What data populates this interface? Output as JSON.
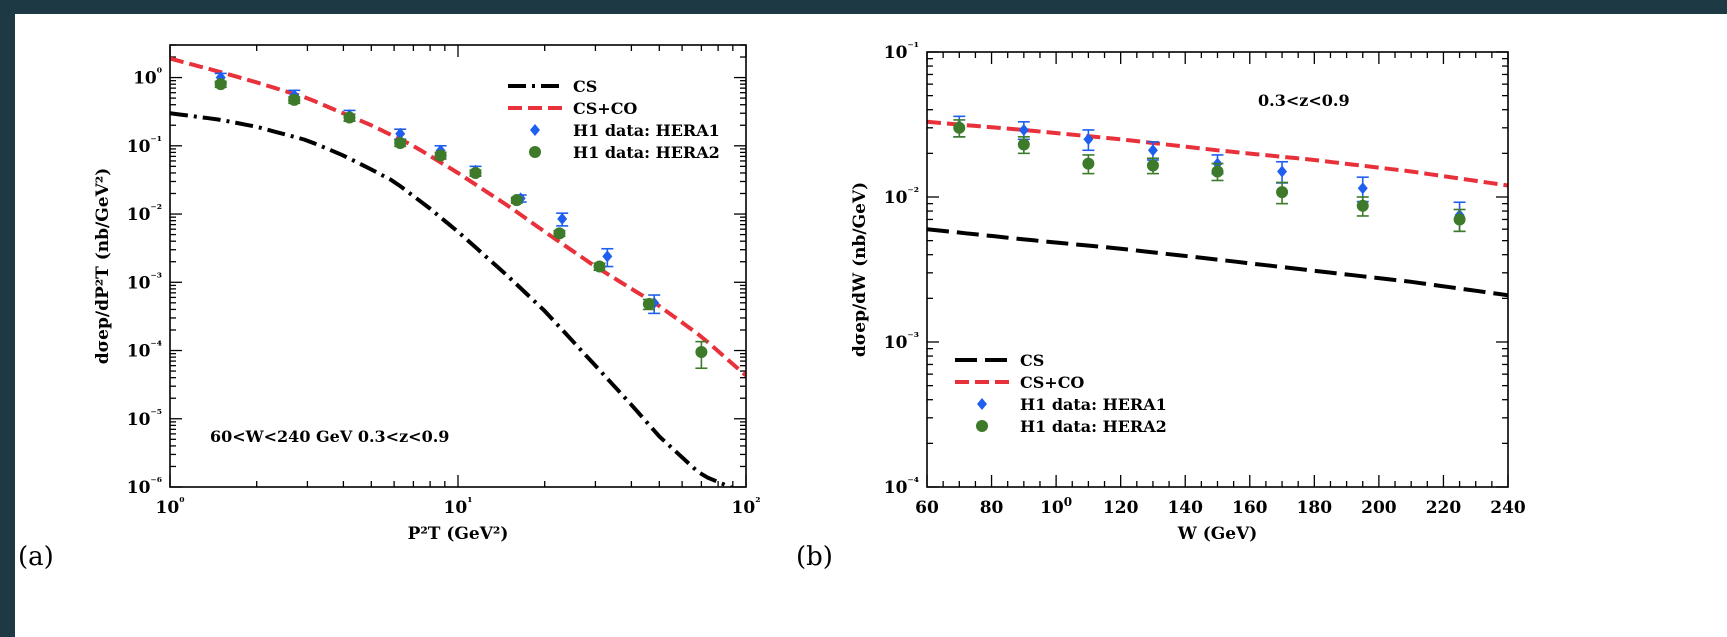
{
  "chart_data": [
    {
      "panel": "(a)",
      "type": "line",
      "xlabel": "P²T (GeV²)",
      "ylabel": "dσep/dP²T (nb/GeV²)",
      "xscale": "log",
      "yscale": "log",
      "xlim": [
        1,
        100
      ],
      "ylim": [
        1e-06,
        3
      ],
      "xticks": [
        "10⁰",
        "10¹",
        "10²"
      ],
      "yticks": [
        "10⁰",
        "10⁻¹",
        "10⁻²",
        "10⁻³",
        "10⁻⁴",
        "10⁻⁵",
        "10⁻⁶"
      ],
      "annotation": "60<W<240 GeV    0.3<z<0.9",
      "legend_position": "top-right",
      "series": [
        {
          "name": "CS",
          "style": "dash-dot",
          "color": "#000000",
          "x": [
            1,
            1.5,
            2,
            3,
            4,
            5,
            6,
            8,
            10,
            15,
            20,
            30,
            40,
            50,
            70,
            100
          ],
          "y": [
            0.3,
            0.24,
            0.19,
            0.12,
            0.072,
            0.045,
            0.03,
            0.012,
            0.0055,
            0.0012,
            0.00038,
            6e-05,
            1.6e-05,
            5.5e-06,
            1.5e-06,
            8e-07
          ]
        },
        {
          "name": "CS+CO",
          "style": "dashed",
          "color": "#e8313a",
          "x": [
            1,
            1.5,
            2,
            3,
            5,
            7,
            10,
            15,
            20,
            30,
            50,
            70,
            100
          ],
          "y": [
            1.9,
            1.2,
            0.85,
            0.5,
            0.2,
            0.1,
            0.04,
            0.013,
            0.0055,
            0.0017,
            0.00045,
            0.00016,
            4.3e-05
          ]
        },
        {
          "name": "H1 data: HERA1",
          "style": "diamond",
          "color": "#1f5ff0",
          "x": [
            1.5,
            2.7,
            4.2,
            6.3,
            8.7,
            11.5,
            16.5,
            23,
            33,
            48
          ],
          "y": [
            1.0,
            0.55,
            0.28,
            0.15,
            0.085,
            0.043,
            0.017,
            0.0085,
            0.0024,
            0.0005
          ],
          "err": [
            0.15,
            0.1,
            0.05,
            0.025,
            0.015,
            0.007,
            0.002,
            0.0018,
            0.0007,
            0.00015
          ]
        },
        {
          "name": "H1 data: HERA2",
          "style": "circle",
          "color": "#3d7a29",
          "x": [
            1.5,
            2.7,
            4.2,
            6.3,
            8.7,
            11.5,
            16,
            22.5,
            31,
            46,
            70
          ],
          "y": [
            0.8,
            0.47,
            0.26,
            0.11,
            0.072,
            0.04,
            0.016,
            0.0052,
            0.0017,
            0.00048,
            9.5e-05
          ],
          "err": [
            0.08,
            0.05,
            0.03,
            0.012,
            0.008,
            0.004,
            0.0015,
            0.0005,
            0.0002,
            8e-05,
            4e-05
          ]
        }
      ]
    },
    {
      "panel": "(b)",
      "type": "line",
      "xlabel": "W (GeV)",
      "ylabel": "dσep/dW (nb/GeV)",
      "xscale": "linear",
      "yscale": "log",
      "xlim": [
        60,
        240
      ],
      "ylim": [
        0.0001,
        0.1
      ],
      "xticks": [
        "60",
        "80",
        "100",
        "120",
        "140",
        "160",
        "180",
        "200",
        "220",
        "240"
      ],
      "yticks": [
        "10⁻¹",
        "10⁻²",
        "10⁻³",
        "10⁻⁴"
      ],
      "annotation": "0.3<z<0.9",
      "legend_position": "bottom-left",
      "series": [
        {
          "name": "CS",
          "style": "long-dash",
          "color": "#000000",
          "x": [
            60,
            90,
            120,
            150,
            180,
            210,
            240
          ],
          "y": [
            0.006,
            0.0051,
            0.0044,
            0.0037,
            0.0031,
            0.0026,
            0.0021
          ]
        },
        {
          "name": "CS+CO",
          "style": "dashed",
          "color": "#e8313a",
          "x": [
            60,
            90,
            120,
            150,
            180,
            210,
            240
          ],
          "y": [
            0.033,
            0.029,
            0.025,
            0.021,
            0.018,
            0.015,
            0.012
          ]
        },
        {
          "name": "H1 data: HERA1",
          "style": "diamond",
          "color": "#1f5ff0",
          "x": [
            70,
            90,
            110,
            130,
            150,
            170,
            195,
            225
          ],
          "y": [
            0.031,
            0.029,
            0.025,
            0.021,
            0.017,
            0.015,
            0.0115,
            0.0075
          ],
          "err": [
            0.005,
            0.004,
            0.004,
            0.003,
            0.0025,
            0.0025,
            0.0022,
            0.0017
          ]
        },
        {
          "name": "H1 data: HERA2",
          "style": "circle",
          "color": "#3d7a29",
          "x": [
            70,
            90,
            110,
            130,
            150,
            170,
            195,
            225
          ],
          "y": [
            0.03,
            0.023,
            0.017,
            0.0165,
            0.015,
            0.0108,
            0.0087,
            0.007
          ],
          "err": [
            0.004,
            0.003,
            0.0025,
            0.002,
            0.002,
            0.0018,
            0.0013,
            0.0012
          ]
        }
      ]
    }
  ]
}
